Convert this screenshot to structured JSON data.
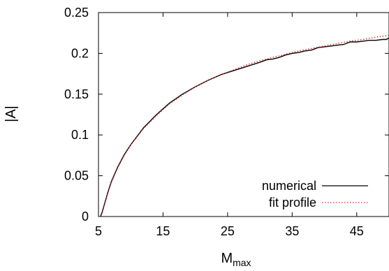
{
  "chart_data": {
    "type": "line",
    "xlabel": "M",
    "xlabel_sub": "max",
    "ylabel": "|A|",
    "xlim": [
      5,
      50
    ],
    "ylim": [
      0,
      0.25
    ],
    "xticks": [
      5,
      15,
      25,
      35,
      45
    ],
    "yticks": [
      0,
      0.05,
      0.1,
      0.15,
      0.2,
      0.25
    ],
    "xtick_labels": [
      "5",
      "15",
      "25",
      "35",
      "45"
    ],
    "ytick_labels": [
      "0",
      "0.05",
      "0.1",
      "0.15",
      "0.2",
      "0.25"
    ],
    "grid": false,
    "legend_position": "bottom-right",
    "series": [
      {
        "name": "numerical",
        "color": "#000000",
        "style": "solid",
        "x": [
          5.3,
          5.6,
          6.0,
          6.5,
          7.0,
          8.0,
          9.0,
          10.0,
          12.0,
          14.0,
          16.0,
          18.0,
          20.0,
          22.0,
          24.0,
          26.0,
          28.0,
          30.0,
          31.0,
          32.0,
          33.0,
          34.0,
          35.0,
          36.0,
          37.0,
          38.0,
          39.0,
          40.0,
          41.0,
          42.0,
          43.0,
          44.0,
          45.0,
          46.0,
          47.0,
          48.0,
          49.0,
          49.6,
          50.0
        ],
        "y": [
          0.0,
          0.006,
          0.017,
          0.031,
          0.043,
          0.061,
          0.076,
          0.088,
          0.109,
          0.125,
          0.139,
          0.15,
          0.159,
          0.167,
          0.174,
          0.179,
          0.184,
          0.189,
          0.192,
          0.193,
          0.195,
          0.198,
          0.2,
          0.201,
          0.203,
          0.204,
          0.207,
          0.208,
          0.209,
          0.21,
          0.211,
          0.214,
          0.214,
          0.215,
          0.216,
          0.216,
          0.217,
          0.217,
          0.219
        ]
      },
      {
        "name": "fit profile",
        "color": "#d62728",
        "style": "dotted",
        "x": [
          5.4,
          5.6,
          6.0,
          6.5,
          7.0,
          8.0,
          9.0,
          10.0,
          12.0,
          14.0,
          16.0,
          18.0,
          20.0,
          22.0,
          24.0,
          26.0,
          28.0,
          30.0,
          32.0,
          34.0,
          36.0,
          38.0,
          40.0,
          42.0,
          44.0,
          46.0,
          48.0,
          50.0
        ],
        "y": [
          0.0,
          0.005,
          0.016,
          0.03,
          0.042,
          0.06,
          0.075,
          0.088,
          0.108,
          0.124,
          0.138,
          0.149,
          0.159,
          0.167,
          0.174,
          0.18,
          0.186,
          0.191,
          0.195,
          0.199,
          0.203,
          0.206,
          0.209,
          0.212,
          0.215,
          0.217,
          0.22,
          0.222
        ]
      }
    ]
  }
}
